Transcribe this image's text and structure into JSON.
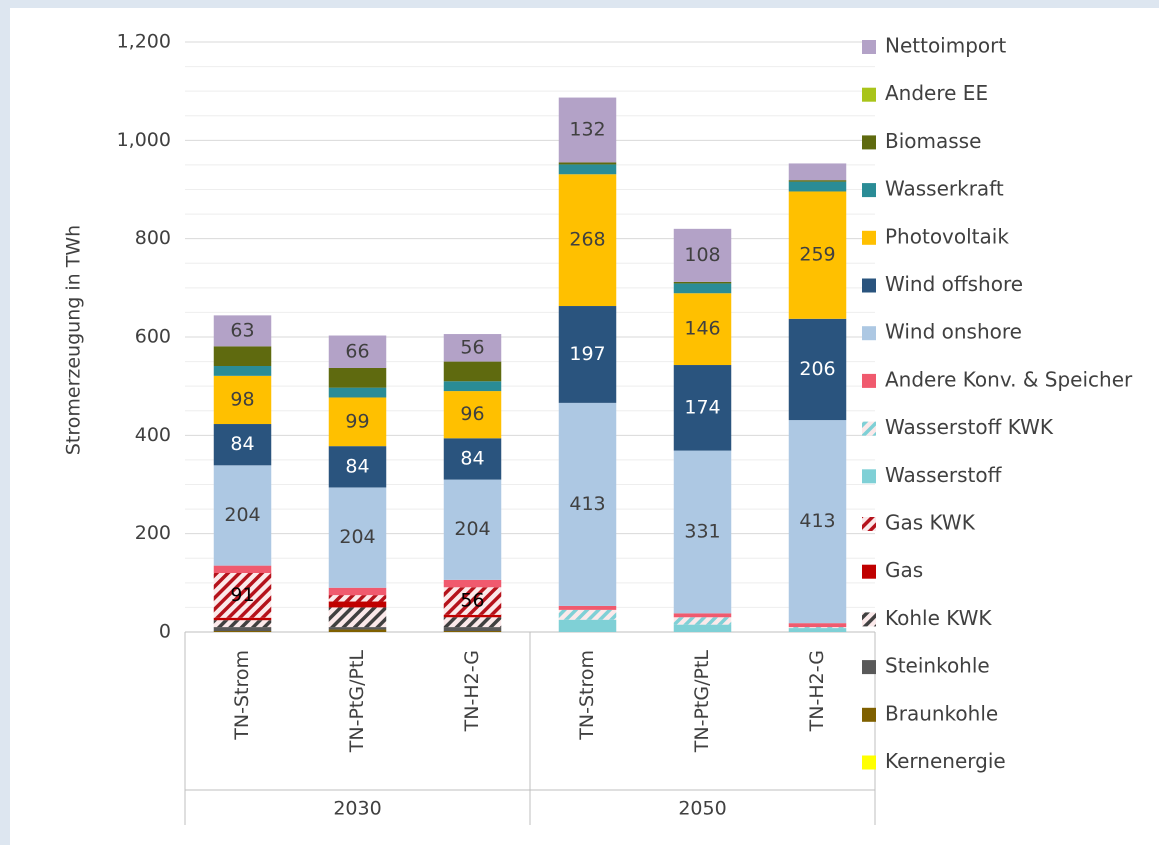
{
  "chart_data": {
    "type": "stacked_bar",
    "ylabel": "Stromerzeugung in TWh",
    "categories": [
      "TN-Strom",
      "TN-PtG/PtL",
      "TN-H2-G",
      "TN-Strom",
      "TN-PtG/PtL",
      "TN-H2-G"
    ],
    "groups": [
      "2030",
      "2050"
    ],
    "ylim": [
      0,
      1200
    ],
    "yticks": [
      0,
      200,
      400,
      600,
      800,
      {
        "value": 1000,
        "label": "1,000"
      },
      {
        "value": 1200,
        "label": "1,200"
      }
    ],
    "grid": true,
    "legend": "right",
    "series": [
      {
        "name": "Kernenergie",
        "color": "#ffff00",
        "values": [
          0,
          0,
          0,
          0,
          0,
          0
        ]
      },
      {
        "name": "Braunkohle",
        "color": "#7f6000",
        "values": [
          2,
          5,
          2,
          0,
          0,
          0
        ]
      },
      {
        "name": "Steinkohle",
        "color": "#595959",
        "values": [
          8,
          5,
          8,
          0,
          0,
          0
        ]
      },
      {
        "name": "Kohle KWK",
        "color": "#404040",
        "pattern": "hatch",
        "values": [
          14,
          40,
          20,
          0,
          0,
          0
        ]
      },
      {
        "name": "Gas",
        "color": "#c00000",
        "values": [
          5,
          12,
          5,
          0,
          0,
          0
        ]
      },
      {
        "name": "Gas KWK",
        "color": "#b5121b",
        "pattern": "hatch",
        "values": [
          91,
          13,
          56,
          0,
          0,
          0
        ]
      },
      {
        "name": "Wasserstoff",
        "color": "#7fd0d6",
        "values": [
          0,
          0,
          0,
          25,
          15,
          8
        ]
      },
      {
        "name": "Wasserstoff KWK",
        "color": "#7fd0d6",
        "pattern": "hatch",
        "values": [
          0,
          0,
          0,
          20,
          15,
          2
        ]
      },
      {
        "name": "Andere Konv. & Speicher",
        "color": "#f05a6e",
        "values": [
          15,
          15,
          15,
          8,
          8,
          8
        ]
      },
      {
        "name": "Wind onshore",
        "color": "#adc8e3",
        "values": [
          204,
          204,
          204,
          413,
          331,
          413
        ]
      },
      {
        "name": "Wind offshore",
        "color": "#2a547e",
        "values": [
          84,
          84,
          84,
          197,
          174,
          206
        ]
      },
      {
        "name": "Photovoltaik",
        "color": "#ffc000",
        "values": [
          98,
          99,
          96,
          268,
          146,
          259
        ]
      },
      {
        "name": "Wasserkraft",
        "color": "#2a8c96",
        "values": [
          20,
          20,
          20,
          20,
          20,
          20
        ]
      },
      {
        "name": "Biomasse",
        "color": "#5f6a0f",
        "values": [
          40,
          40,
          40,
          4,
          3,
          3
        ]
      },
      {
        "name": "Andere EE",
        "color": "#a9c41a",
        "values": [
          0,
          0,
          0,
          0,
          0,
          0
        ]
      },
      {
        "name": "Nettoimport",
        "color": "#b3a2c7",
        "values": [
          63,
          66,
          56,
          132,
          108,
          34
        ]
      }
    ]
  }
}
